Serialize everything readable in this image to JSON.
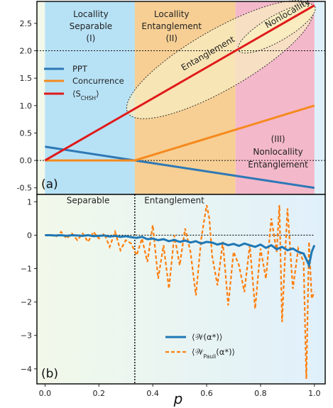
{
  "colors": {
    "ppt": "#2e78b5",
    "concurrence": "#f58a1f",
    "chsh": "#e01a1a",
    "witness": "#1f77b4",
    "witness_pauli": "#ff7f0e",
    "region_separable": "#b7e2f6",
    "region_entanglement": "#f7cf94",
    "region_nonlocality": "#f4b8cb",
    "bg_left": "#f2f9ea",
    "bg_right": "#e0f0fb",
    "ellipse_fill": "#f8ecc0"
  },
  "chart_data": [
    {
      "type": "line",
      "panel_label": "(a)",
      "xlim": [
        -0.03,
        1.04
      ],
      "ylim": [
        -0.62,
        2.9
      ],
      "yticks": [
        "2.5",
        "2.0",
        "1.5",
        "1.0",
        "0.5",
        "0.0",
        "-0.5"
      ],
      "ytick_values": [
        2.5,
        2.0,
        1.5,
        1.0,
        0.5,
        0.0,
        -0.5
      ],
      "hlines": [
        2.0,
        0.0
      ],
      "regions": [
        {
          "x": [
            0.0,
            0.3333
          ],
          "label": [
            "Locallity",
            "Separable",
            "(I)"
          ]
        },
        {
          "x": [
            0.3333,
            0.7071
          ],
          "label": [
            "Locallity",
            "Entanglement",
            "(II)"
          ]
        },
        {
          "x": [
            0.7071,
            1.0
          ],
          "label": [
            "(III)",
            "Nonlocallity",
            "Entanglement"
          ]
        }
      ],
      "ellipse_labels": [
        "Entanglement",
        "Nonlocallity"
      ],
      "series": [
        {
          "name": "PPT",
          "x": [
            0.0,
            0.3333,
            1.0
          ],
          "y": [
            0.25,
            0.0,
            -0.5
          ]
        },
        {
          "name": "Concurrence",
          "x": [
            0.0,
            0.3333,
            1.0
          ],
          "y": [
            0.0,
            0.0,
            1.0
          ]
        },
        {
          "name": "⟨S",
          "name_sub": "CHSH",
          "name_end": "⟩",
          "x": [
            0.0,
            1.0
          ],
          "y": [
            0.0,
            2.8284
          ]
        }
      ],
      "legend_position": "left-middle"
    },
    {
      "type": "line",
      "panel_label": "(b)",
      "xlim": [
        -0.03,
        1.04
      ],
      "ylim": [
        -4.45,
        1.22
      ],
      "xlabel": "p",
      "xticks": [
        "0.0",
        "0.2",
        "0.4",
        "0.6",
        "0.8",
        "1.0"
      ],
      "xtick_values": [
        0.0,
        0.2,
        0.4,
        0.6,
        0.8,
        1.0
      ],
      "yticks": [
        "1",
        "0",
        "−1",
        "−2",
        "−3",
        "−4"
      ],
      "ytick_values": [
        1,
        0,
        -1,
        -2,
        -3,
        -4
      ],
      "hlines": [
        0.0
      ],
      "vlines": [
        0.3333
      ],
      "region_labels": [
        "Separable",
        "Entanglement"
      ],
      "series": [
        {
          "name": "⟨𝒲(α*)⟩",
          "x": [
            0.0,
            0.02,
            0.04,
            0.06,
            0.08,
            0.1,
            0.12,
            0.14,
            0.16,
            0.18,
            0.2,
            0.22,
            0.24,
            0.26,
            0.28,
            0.3,
            0.32,
            0.34,
            0.36,
            0.38,
            0.4,
            0.42,
            0.44,
            0.46,
            0.48,
            0.5,
            0.52,
            0.54,
            0.56,
            0.58,
            0.6,
            0.62,
            0.64,
            0.66,
            0.68,
            0.7,
            0.72,
            0.74,
            0.76,
            0.78,
            0.8,
            0.82,
            0.84,
            0.86,
            0.88,
            0.9,
            0.92,
            0.94,
            0.96,
            0.98,
            0.99,
            1.0
          ],
          "y": [
            0.0,
            0.0,
            -0.01,
            0.0,
            -0.02,
            0.0,
            -0.01,
            -0.02,
            0.0,
            -0.03,
            -0.02,
            -0.01,
            -0.04,
            -0.02,
            -0.05,
            -0.03,
            -0.06,
            -0.08,
            -0.05,
            -0.12,
            -0.1,
            -0.15,
            -0.12,
            -0.18,
            -0.14,
            -0.2,
            -0.16,
            -0.22,
            -0.18,
            -0.25,
            -0.2,
            -0.22,
            -0.28,
            -0.24,
            -0.3,
            -0.26,
            -0.32,
            -0.25,
            -0.3,
            -0.35,
            -0.28,
            -0.38,
            -0.3,
            -0.42,
            -0.35,
            -0.45,
            -0.4,
            -0.5,
            -0.55,
            -0.9,
            -0.5,
            -0.3
          ]
        },
        {
          "name": "⟨𝒲",
          "name_sub": "Pauli",
          "name_end": "(α*)⟩",
          "dashed": true,
          "x": [
            0.0,
            0.02,
            0.04,
            0.06,
            0.08,
            0.1,
            0.12,
            0.14,
            0.16,
            0.18,
            0.2,
            0.22,
            0.24,
            0.26,
            0.28,
            0.3,
            0.32,
            0.34,
            0.36,
            0.38,
            0.4,
            0.42,
            0.44,
            0.46,
            0.48,
            0.5,
            0.52,
            0.54,
            0.56,
            0.58,
            0.6,
            0.61,
            0.62,
            0.64,
            0.66,
            0.68,
            0.7,
            0.72,
            0.74,
            0.76,
            0.78,
            0.8,
            0.82,
            0.84,
            0.86,
            0.87,
            0.88,
            0.89,
            0.9,
            0.92,
            0.94,
            0.96,
            0.97,
            0.98,
            0.99,
            1.0
          ],
          "y": [
            0.0,
            0.02,
            -0.05,
            0.1,
            -0.1,
            0.05,
            -0.15,
            0.05,
            -0.2,
            0.1,
            -0.1,
            0.05,
            -0.35,
            0.1,
            -0.45,
            -0.15,
            -0.25,
            -0.6,
            -0.1,
            -0.8,
            0.3,
            -1.3,
            -0.3,
            -1.6,
            0.0,
            -0.9,
            0.2,
            -0.5,
            -1.8,
            -0.1,
            0.9,
            0.5,
            -0.6,
            -1.5,
            -0.2,
            -2.1,
            -0.5,
            -0.9,
            -1.7,
            -0.3,
            -2.2,
            -0.4,
            -1.3,
            0.5,
            -0.5,
            0.9,
            -2.6,
            -0.8,
            0.8,
            -1.6,
            -0.4,
            -0.8,
            -4.3,
            -0.2,
            -1.9,
            -1.7
          ]
        }
      ],
      "legend_position": "lower-right"
    }
  ]
}
